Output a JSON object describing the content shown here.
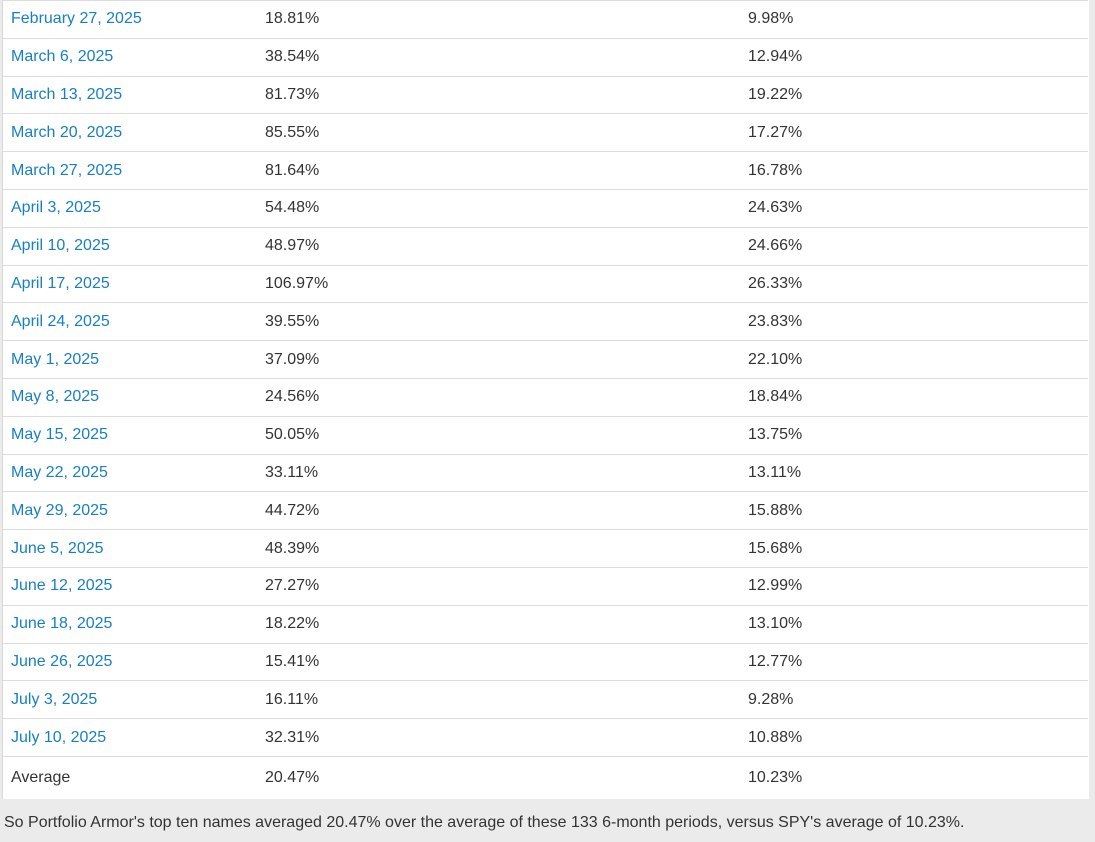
{
  "colors": {
    "page_background": "#ebebeb",
    "link": "#1780c4",
    "text": "#333333",
    "row_border": "#dcdcdc",
    "table_background": "#ffffff"
  },
  "table": {
    "rows": [
      {
        "date": "February 27, 2025",
        "top_ten_return": "18.81%",
        "spy_return": "9.98%"
      },
      {
        "date": "March 6, 2025",
        "top_ten_return": "38.54%",
        "spy_return": "12.94%"
      },
      {
        "date": "March 13, 2025",
        "top_ten_return": "81.73%",
        "spy_return": "19.22%"
      },
      {
        "date": "March 20, 2025",
        "top_ten_return": "85.55%",
        "spy_return": "17.27%"
      },
      {
        "date": "March 27, 2025",
        "top_ten_return": "81.64%",
        "spy_return": "16.78%"
      },
      {
        "date": "April 3, 2025",
        "top_ten_return": "54.48%",
        "spy_return": "24.63%"
      },
      {
        "date": "April 10, 2025",
        "top_ten_return": "48.97%",
        "spy_return": "24.66%"
      },
      {
        "date": "April 17, 2025",
        "top_ten_return": "106.97%",
        "spy_return": "26.33%"
      },
      {
        "date": "April 24, 2025",
        "top_ten_return": "39.55%",
        "spy_return": "23.83%"
      },
      {
        "date": "May 1, 2025",
        "top_ten_return": "37.09%",
        "spy_return": "22.10%"
      },
      {
        "date": "May 8, 2025",
        "top_ten_return": "24.56%",
        "spy_return": "18.84%"
      },
      {
        "date": "May 15, 2025",
        "top_ten_return": "50.05%",
        "spy_return": "13.75%"
      },
      {
        "date": "May 22, 2025",
        "top_ten_return": "33.11%",
        "spy_return": "13.11%"
      },
      {
        "date": "May 29, 2025",
        "top_ten_return": "44.72%",
        "spy_return": "15.88%"
      },
      {
        "date": "June 5, 2025",
        "top_ten_return": "48.39%",
        "spy_return": "15.68%"
      },
      {
        "date": "June 12, 2025",
        "top_ten_return": "27.27%",
        "spy_return": "12.99%"
      },
      {
        "date": "June 18, 2025",
        "top_ten_return": "18.22%",
        "spy_return": "13.10%"
      },
      {
        "date": "June 26, 2025",
        "top_ten_return": "15.41%",
        "spy_return": "12.77%"
      },
      {
        "date": "July 3, 2025",
        "top_ten_return": "16.11%",
        "spy_return": "9.28%"
      },
      {
        "date": "July 10, 2025",
        "top_ten_return": "32.31%",
        "spy_return": "10.88%"
      }
    ],
    "average": {
      "label": "Average",
      "top_ten_return": "20.47%",
      "spy_return": "10.23%"
    }
  },
  "footer": {
    "text": "So Portfolio Armor's top ten names averaged 20.47% over the average of these 133 6-month periods, versus SPY's average of 10.23%."
  }
}
